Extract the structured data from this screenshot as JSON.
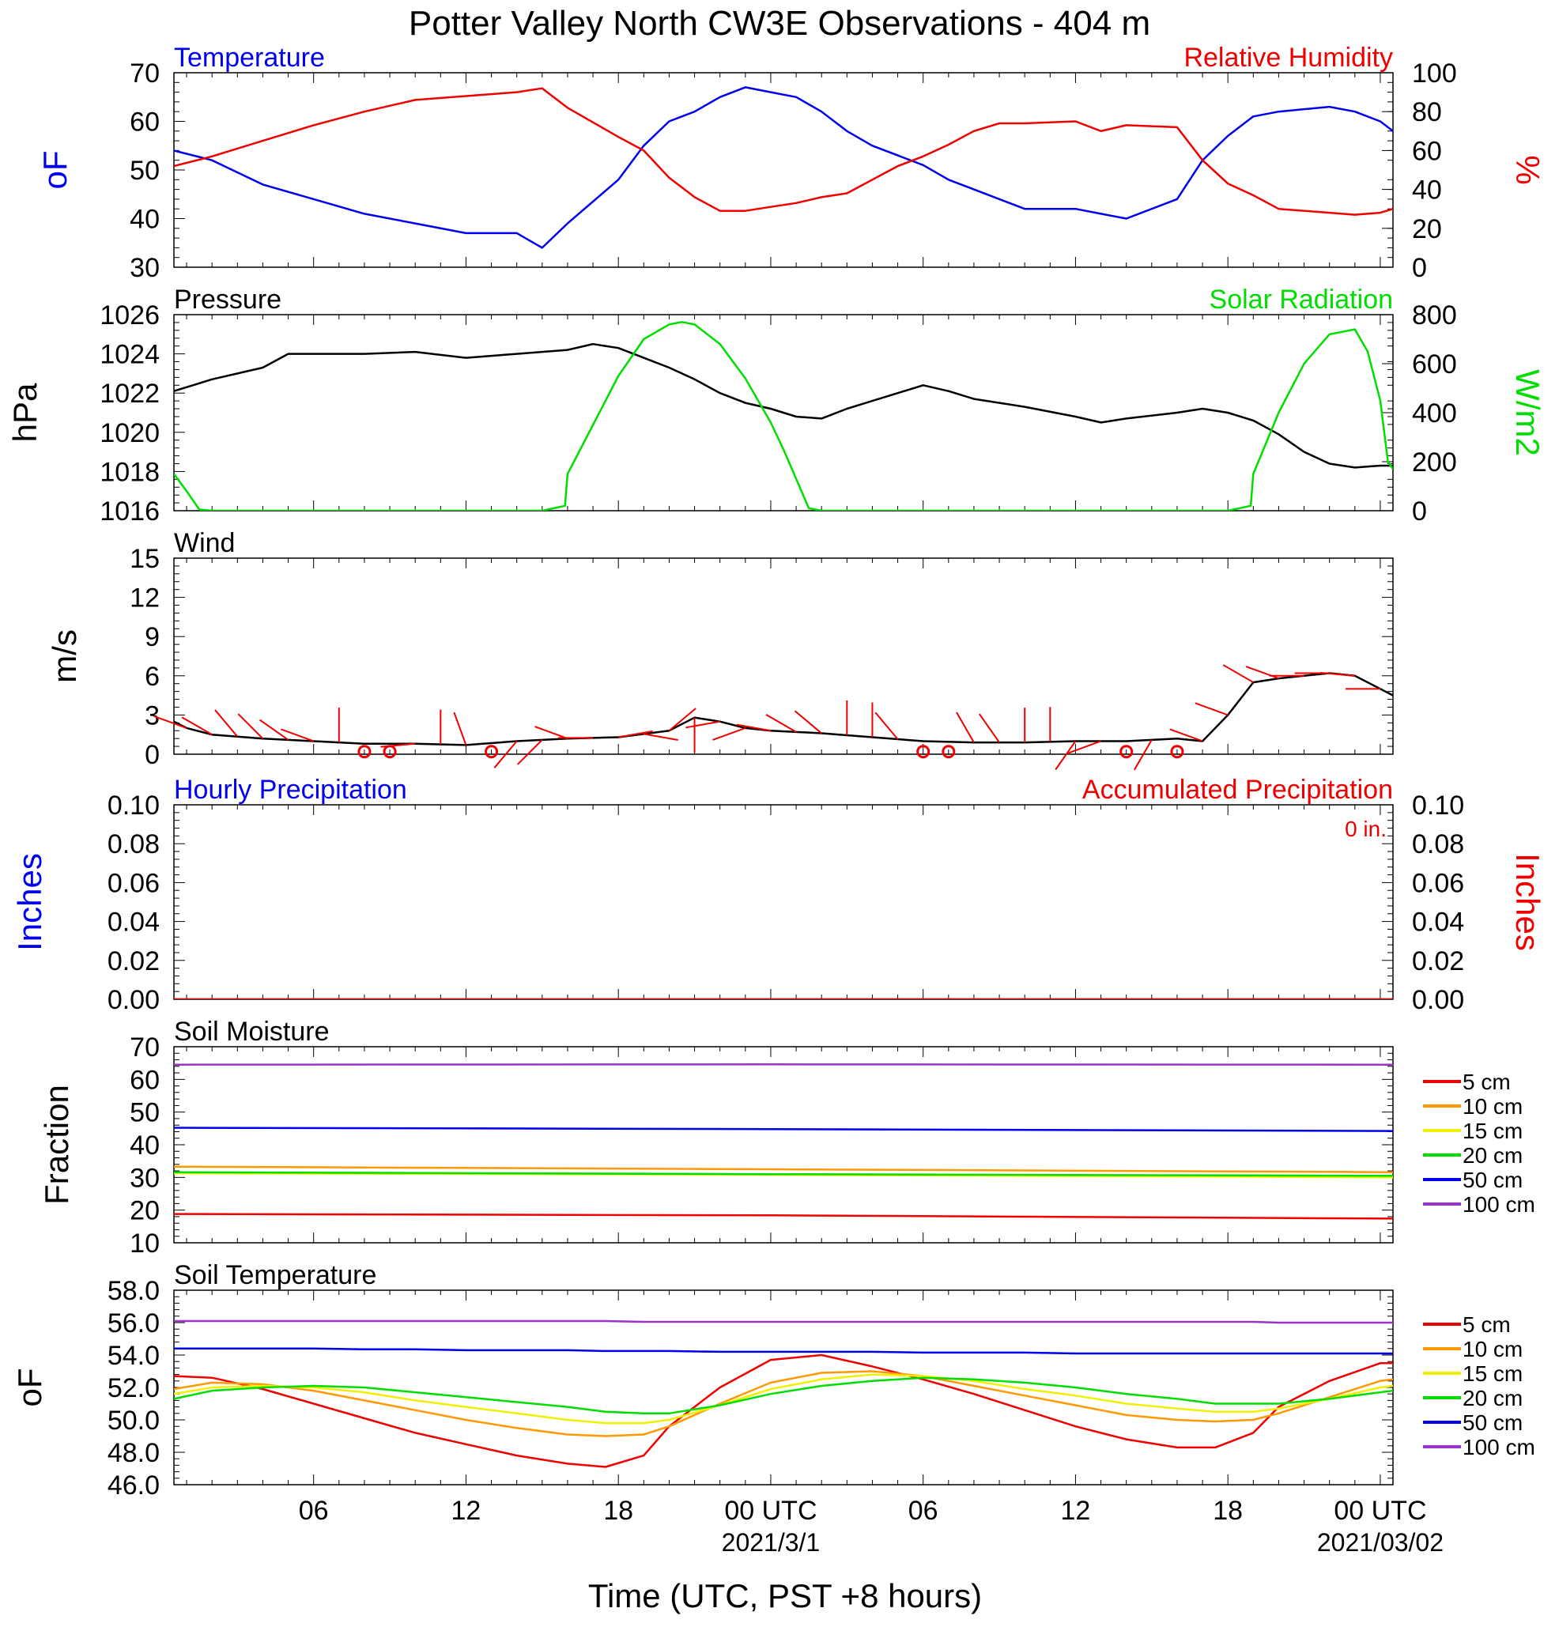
{
  "title": "Potter Valley North CW3E Observations - 404 m",
  "x_axis": {
    "title": "Time (UTC, PST +8 hours)",
    "tick_labels": [
      "06",
      "12",
      "18",
      "00 UTC",
      "06",
      "12",
      "18",
      "00 UTC"
    ],
    "tick_hours": [
      6,
      12,
      18,
      24,
      30,
      36,
      42,
      48
    ],
    "date_labels": [
      {
        "text": "2021/3/1",
        "hour": 24
      },
      {
        "text": "2021/03/02",
        "hour": 48
      }
    ],
    "range_hours": [
      0.5,
      48.5
    ]
  },
  "colors": {
    "blue": "#0000ee",
    "red": "#ee0000",
    "green": "#00dd00",
    "black": "#000000",
    "orange": "#ff9900",
    "yellow": "#f0f000",
    "purple": "#9933cc"
  },
  "chart_data": [
    {
      "type": "line",
      "id": "temp_rh",
      "title_left": "Temperature",
      "title_right": "Relative Humidity",
      "ylabel_left": "oF",
      "ylabel_right": "%",
      "ylim_left": [
        30,
        70
      ],
      "ylim_right": [
        0,
        100
      ],
      "yticks_left": [
        "30",
        "40",
        "50",
        "60",
        "70"
      ],
      "yticks_right": [
        "0",
        "20",
        "40",
        "60",
        "80",
        "100"
      ],
      "x_hours": [
        0.5,
        2,
        4,
        6,
        8,
        10,
        12,
        14,
        15,
        16,
        18,
        19,
        20,
        21,
        22,
        23,
        24,
        25,
        26,
        27,
        28,
        29,
        30,
        31,
        32,
        33,
        34,
        36,
        37,
        38,
        40,
        41,
        42,
        43,
        44,
        46,
        47,
        48,
        48.5
      ],
      "series": [
        {
          "name": "Temperature",
          "axis": "left",
          "color": "#0000ee",
          "values": [
            54,
            52,
            47,
            44,
            41,
            39,
            37,
            37,
            34,
            39,
            48,
            55,
            60,
            62,
            65,
            67,
            66,
            65,
            62,
            58,
            55,
            53,
            51,
            48,
            46,
            44,
            42,
            42,
            41,
            40,
            44,
            52,
            57,
            61,
            62,
            63,
            62,
            60,
            58
          ]
        },
        {
          "name": "Relative Humidity",
          "axis": "right",
          "color": "#ee0000",
          "values": [
            52,
            57,
            65,
            73,
            80,
            86,
            88,
            90,
            92,
            82,
            67,
            60,
            46,
            36,
            29,
            29,
            31,
            33,
            36,
            38,
            45,
            52,
            57,
            63,
            70,
            74,
            74,
            75,
            70,
            73,
            72,
            55,
            43,
            37,
            30,
            28,
            27,
            28,
            30
          ]
        }
      ]
    },
    {
      "type": "line",
      "id": "pressure_solar",
      "title_left": "Pressure",
      "title_right": "Solar Radiation",
      "ylabel_left": "hPa",
      "ylabel_right": "W/m2",
      "ylim_left": [
        1016,
        1026
      ],
      "ylim_right": [
        0,
        800
      ],
      "yticks_left": [
        "1016",
        "1018",
        "1020",
        "1022",
        "1024",
        "1026"
      ],
      "yticks_right": [
        "0",
        "200",
        "400",
        "600",
        "800"
      ],
      "series": [
        {
          "name": "Pressure",
          "axis": "left",
          "color": "#000000",
          "x": [
            0.5,
            2,
            4,
            5,
            8,
            10,
            12,
            14,
            16,
            17,
            18,
            19,
            20,
            21,
            22,
            23,
            24,
            25,
            26,
            27,
            28,
            29,
            30,
            31,
            32,
            34,
            36,
            37,
            38,
            40,
            41,
            42,
            43,
            44,
            45,
            46,
            47,
            48,
            48.5
          ],
          "values": [
            1022.1,
            1022.7,
            1023.3,
            1024.0,
            1024.0,
            1024.1,
            1023.8,
            1024.0,
            1024.2,
            1024.5,
            1024.3,
            1023.8,
            1023.3,
            1022.7,
            1022.0,
            1021.5,
            1021.2,
            1020.8,
            1020.7,
            1021.2,
            1021.6,
            1022.0,
            1022.4,
            1022.1,
            1021.7,
            1021.3,
            1020.8,
            1020.5,
            1020.7,
            1021.0,
            1021.2,
            1021.0,
            1020.6,
            1019.9,
            1019.0,
            1018.4,
            1018.2,
            1018.3,
            1018.3
          ]
        },
        {
          "name": "Solar Radiation",
          "axis": "right",
          "color": "#00dd00",
          "x": [
            0.5,
            1,
            1.5,
            2,
            15,
            15.9,
            16,
            17,
            18,
            19,
            20,
            20.5,
            21,
            22,
            23,
            24,
            24.5,
            25,
            25.5,
            26,
            42,
            42.9,
            43,
            44,
            45,
            46,
            47,
            47.5,
            48,
            48.3,
            48.5
          ],
          "values": [
            150,
            80,
            5,
            0,
            0,
            20,
            150,
            350,
            550,
            700,
            760,
            770,
            760,
            680,
            540,
            360,
            250,
            130,
            10,
            0,
            0,
            20,
            150,
            400,
            600,
            720,
            740,
            650,
            450,
            200,
            170
          ]
        }
      ]
    },
    {
      "type": "line",
      "id": "wind",
      "title_left": "Wind",
      "ylabel_left": "m/s",
      "ylim_left": [
        0,
        15
      ],
      "yticks_left": [
        "0",
        "3",
        "6",
        "9",
        "12",
        "15"
      ],
      "series": [
        {
          "name": "Wind",
          "axis": "left",
          "color": "#000000",
          "x": [
            0.5,
            1,
            2,
            4,
            6,
            8,
            10,
            12,
            14,
            16,
            18,
            20,
            21,
            22,
            23,
            24,
            26,
            28,
            30,
            32,
            34,
            36,
            38,
            40,
            41,
            42,
            43,
            44,
            45,
            46,
            47,
            48,
            48.5
          ],
          "values": [
            2.5,
            2.0,
            1.5,
            1.2,
            1.0,
            0.8,
            0.8,
            0.7,
            1.0,
            1.2,
            1.3,
            1.8,
            2.8,
            2.5,
            2.0,
            1.8,
            1.6,
            1.3,
            1.0,
            0.9,
            0.9,
            1.0,
            1.0,
            1.2,
            1.0,
            3.0,
            5.5,
            5.8,
            6.0,
            6.2,
            6.0,
            5.0,
            4.5
          ]
        }
      ],
      "wind_barbs": {
        "hours": [
          1,
          2,
          3,
          4,
          5,
          6,
          7,
          8,
          9,
          10,
          11,
          12,
          13,
          14,
          15,
          16,
          17,
          18,
          19,
          20,
          21,
          22,
          23,
          24,
          25,
          26,
          27,
          28,
          29,
          30,
          31,
          32,
          33,
          34,
          35,
          36,
          37,
          38,
          39,
          40,
          41,
          42,
          43,
          44,
          45,
          46,
          47,
          48
        ],
        "direction_deg": [
          290,
          300,
          320,
          315,
          305,
          290,
          0,
          300,
          260,
          265,
          0,
          340,
          330,
          220,
          225,
          290,
          270,
          80,
          100,
          50,
          180,
          260,
          250,
          280,
          300,
          310,
          0,
          0,
          320,
          330,
          315,
          330,
          325,
          0,
          0,
          215,
          250,
          320,
          210,
          340,
          290,
          290,
          300,
          290,
          270,
          270,
          275,
          270
        ],
        "calm_hours": [
          8,
          9,
          13,
          30,
          31,
          38,
          40
        ]
      }
    },
    {
      "type": "line",
      "id": "precip",
      "title_left": "Hourly Precipitation",
      "title_right": "Accumulated Precipitation",
      "annotation": "0 in.",
      "ylabel_left": "Inches",
      "ylabel_right": "Inches",
      "ylim_left": [
        0,
        0.1
      ],
      "ylim_right": [
        0,
        0.1
      ],
      "yticks_left": [
        "0.00",
        "0.02",
        "0.04",
        "0.06",
        "0.08",
        "0.10"
      ],
      "yticks_right": [
        "0.00",
        "0.02",
        "0.04",
        "0.06",
        "0.08",
        "0.10"
      ],
      "x_hours": [
        0.5,
        48.5
      ],
      "series": [
        {
          "name": "Hourly Precipitation",
          "axis": "left",
          "color": "#0000ee",
          "values": [
            0,
            0
          ]
        },
        {
          "name": "Accumulated Precipitation",
          "axis": "right",
          "color": "#ee0000",
          "values": [
            0,
            0
          ]
        }
      ]
    },
    {
      "type": "line",
      "id": "soil_moisture",
      "title_left": "Soil Moisture",
      "ylabel_left": "Fraction",
      "ylim_left": [
        10,
        70
      ],
      "yticks_left": [
        "10",
        "20",
        "30",
        "40",
        "50",
        "60",
        "70"
      ],
      "x_hours": [
        0.5,
        24,
        48.5
      ],
      "series": [
        {
          "name": "5 cm",
          "axis": "left",
          "color": "#ee0000",
          "values": [
            18.8,
            18.4,
            17.4
          ]
        },
        {
          "name": "10 cm",
          "axis": "left",
          "color": "#ff9900",
          "values": [
            33.3,
            32.5,
            31.6
          ]
        },
        {
          "name": "15 cm",
          "axis": "left",
          "color": "#f0f000",
          "values": [
            31.3,
            30.8,
            30.0
          ]
        },
        {
          "name": "20 cm",
          "axis": "left",
          "color": "#00dd00",
          "values": [
            31.6,
            31.0,
            30.5
          ]
        },
        {
          "name": "50 cm",
          "axis": "left",
          "color": "#0000ee",
          "values": [
            45.2,
            44.8,
            44.2
          ]
        },
        {
          "name": "100 cm",
          "axis": "left",
          "color": "#9933cc",
          "values": [
            64.5,
            64.6,
            64.5
          ]
        }
      ]
    },
    {
      "type": "line",
      "id": "soil_temperature",
      "title_left": "Soil Temperature",
      "ylabel_left": "oF",
      "ylim_left": [
        46,
        58
      ],
      "yticks_left": [
        "46.0",
        "48.0",
        "50.0",
        "52.0",
        "54.0",
        "56.0",
        "58.0"
      ],
      "x_hours": [
        0.5,
        2,
        4,
        6,
        8,
        10,
        12,
        14,
        16,
        17.5,
        19,
        20,
        22,
        24,
        26,
        28,
        30,
        32,
        34,
        36,
        38,
        40,
        41.5,
        43,
        44,
        46,
        48,
        48.5
      ],
      "series": [
        {
          "name": "5 cm",
          "axis": "left",
          "color": "#ee0000",
          "values": [
            52.7,
            52.6,
            51.9,
            51.0,
            50.1,
            49.2,
            48.5,
            47.8,
            47.3,
            47.1,
            47.8,
            49.6,
            52.0,
            53.7,
            54.0,
            53.3,
            52.5,
            51.6,
            50.6,
            49.6,
            48.8,
            48.3,
            48.3,
            49.2,
            50.8,
            52.4,
            53.5,
            53.5
          ]
        },
        {
          "name": "10 cm",
          "axis": "left",
          "color": "#ff9900",
          "values": [
            51.9,
            52.3,
            52.2,
            51.8,
            51.2,
            50.6,
            50.0,
            49.5,
            49.1,
            49.0,
            49.1,
            49.6,
            51.0,
            52.3,
            52.9,
            53.0,
            52.7,
            52.1,
            51.5,
            50.9,
            50.3,
            50.0,
            49.9,
            50.0,
            50.4,
            51.4,
            52.4,
            52.5
          ]
        },
        {
          "name": "15 cm",
          "axis": "left",
          "color": "#f0f000",
          "values": [
            51.6,
            52.0,
            52.1,
            52.0,
            51.7,
            51.2,
            50.8,
            50.4,
            50.0,
            49.8,
            49.8,
            50.0,
            50.9,
            51.9,
            52.5,
            52.8,
            52.7,
            52.4,
            51.9,
            51.5,
            51.0,
            50.7,
            50.5,
            50.5,
            50.7,
            51.3,
            52.0,
            52.1
          ]
        },
        {
          "name": "20 cm",
          "axis": "left",
          "color": "#00dd00",
          "values": [
            51.3,
            51.8,
            52.0,
            52.1,
            52.0,
            51.7,
            51.4,
            51.1,
            50.8,
            50.5,
            50.4,
            50.4,
            50.9,
            51.6,
            52.1,
            52.4,
            52.6,
            52.5,
            52.3,
            52.0,
            51.6,
            51.3,
            51.0,
            51.0,
            51.0,
            51.3,
            51.7,
            51.8
          ]
        },
        {
          "name": "50 cm",
          "axis": "left",
          "color": "#0000ee",
          "values": [
            54.4,
            54.4,
            54.4,
            54.4,
            54.35,
            54.35,
            54.3,
            54.3,
            54.3,
            54.25,
            54.25,
            54.25,
            54.2,
            54.2,
            54.2,
            54.2,
            54.15,
            54.15,
            54.15,
            54.1,
            54.1,
            54.1,
            54.1,
            54.1,
            54.1,
            54.1,
            54.1,
            54.1
          ]
        },
        {
          "name": "100 cm",
          "axis": "left",
          "color": "#9933cc",
          "values": [
            56.1,
            56.1,
            56.1,
            56.1,
            56.1,
            56.1,
            56.1,
            56.1,
            56.1,
            56.1,
            56.05,
            56.05,
            56.05,
            56.05,
            56.05,
            56.05,
            56.05,
            56.05,
            56.05,
            56.05,
            56.05,
            56.05,
            56.05,
            56.05,
            56.0,
            56.0,
            56.0,
            56.0
          ]
        }
      ]
    }
  ]
}
